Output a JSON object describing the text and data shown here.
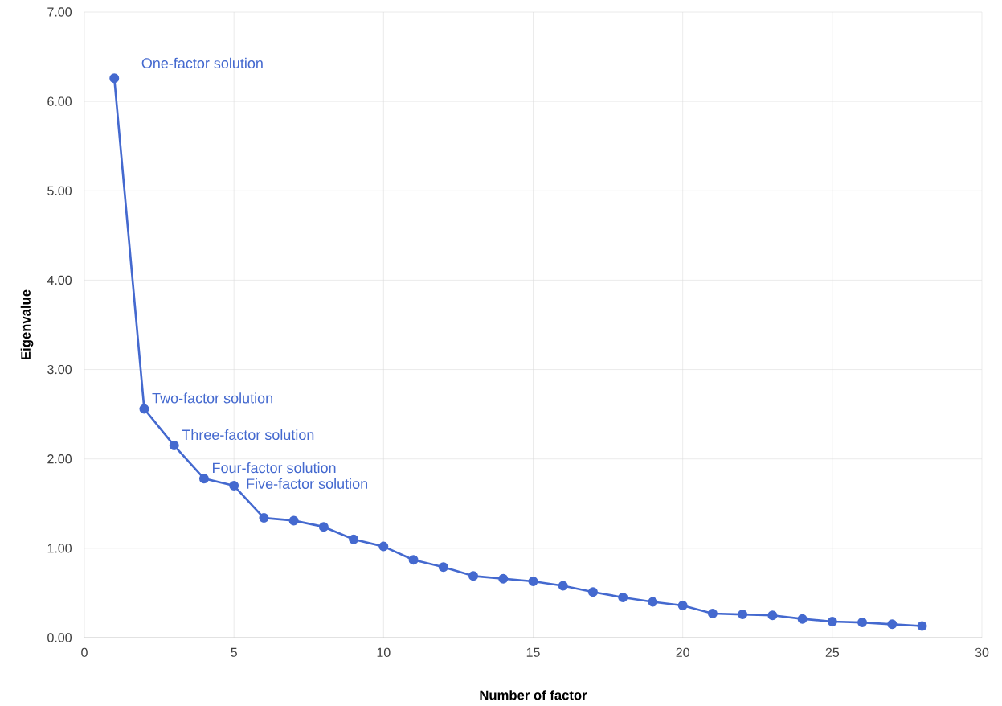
{
  "chart_data": {
    "type": "line",
    "xlabel": "Number of factor",
    "ylabel": "Eigenvalue",
    "x": [
      1,
      2,
      3,
      4,
      5,
      6,
      7,
      8,
      9,
      10,
      11,
      12,
      13,
      14,
      15,
      16,
      17,
      18,
      19,
      20,
      21,
      22,
      23,
      24,
      25,
      26,
      27,
      28
    ],
    "series": [
      {
        "color": "#4469cf",
        "values": [
          6.26,
          2.56,
          2.15,
          1.78,
          1.7,
          1.34,
          1.31,
          1.24,
          1.1,
          1.02,
          0.87,
          0.79,
          0.69,
          0.66,
          0.63,
          0.58,
          0.51,
          0.45,
          0.4,
          0.36,
          0.27,
          0.26,
          0.25,
          0.21,
          0.18,
          0.17,
          0.15,
          0.13
        ]
      }
    ],
    "xlim": [
      0,
      30
    ],
    "xticks": [
      0,
      5,
      10,
      15,
      20,
      25,
      30
    ],
    "ylim": [
      0,
      7
    ],
    "yticks": [
      {
        "value": 0,
        "label": "0.00"
      },
      {
        "value": 1,
        "label": "1.00"
      },
      {
        "value": 2,
        "label": "2.00"
      },
      {
        "value": 3,
        "label": "3.00"
      },
      {
        "value": 4,
        "label": "4.00"
      },
      {
        "value": 5,
        "label": "5.00"
      },
      {
        "value": 6,
        "label": "6.00"
      },
      {
        "value": 7,
        "label": "7.00"
      }
    ],
    "grid": true,
    "marker": "circle",
    "line_style": "solid",
    "annotations": [
      {
        "text": "One-factor solution",
        "x": 1,
        "y": 6.26
      },
      {
        "text": "Two-factor solution",
        "x": 2,
        "y": 2.56
      },
      {
        "text": "Three-factor solution",
        "x": 3,
        "y": 2.15
      },
      {
        "text": "Four-factor solution",
        "x": 4,
        "y": 1.78
      },
      {
        "text": "Five-factor solution",
        "x": 5,
        "y": 1.7
      }
    ]
  }
}
